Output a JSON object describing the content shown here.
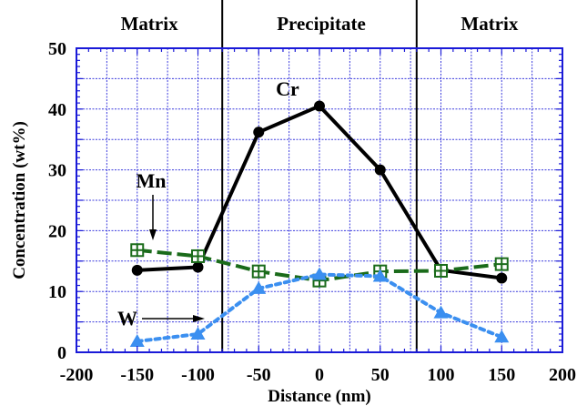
{
  "chart_data": {
    "type": "line",
    "xlabel": "Distance (nm)",
    "ylabel": "Concentration (wt%)",
    "xlim": [
      -200,
      200
    ],
    "ylim": [
      0,
      50
    ],
    "x_ticks": [
      -200,
      -150,
      -100,
      -50,
      0,
      50,
      100,
      150,
      200
    ],
    "y_ticks": [
      0,
      10,
      20,
      30,
      40,
      50
    ],
    "grid": true,
    "regions": [
      {
        "label": "Matrix",
        "from": -200,
        "to": -80
      },
      {
        "label": "Precipitate",
        "from": -80,
        "to": 80
      },
      {
        "label": "Matrix",
        "from": 80,
        "to": 200
      }
    ],
    "boundaries": [
      -80,
      80
    ],
    "series": [
      {
        "name": "Cr",
        "marker": "circle",
        "line": "solid",
        "color": "#000000",
        "x": [
          -150,
          -100,
          -50,
          0,
          50,
          100,
          150
        ],
        "y": [
          13.5,
          14.0,
          36.2,
          40.5,
          30.0,
          13.5,
          12.2
        ]
      },
      {
        "name": "Mn",
        "marker": "square-plus",
        "line": "dashed",
        "color": "#1a6b1a",
        "x": [
          -150,
          -100,
          -50,
          0,
          50,
          100,
          150
        ],
        "y": [
          16.8,
          15.8,
          13.3,
          11.8,
          13.3,
          13.4,
          14.5
        ]
      },
      {
        "name": "W",
        "marker": "triangle",
        "line": "dotted",
        "color": "#3b8ff0",
        "x": [
          -150,
          -100,
          -50,
          0,
          50,
          100,
          150
        ],
        "y": [
          1.8,
          3.0,
          10.5,
          12.8,
          12.5,
          6.5,
          2.5
        ]
      }
    ],
    "annotations": [
      {
        "text": "Cr",
        "target_series": "Cr"
      },
      {
        "text": "Mn",
        "target_series": "Mn",
        "arrow": "down"
      },
      {
        "text": "W",
        "target_series": "W",
        "arrow": "right"
      }
    ]
  }
}
